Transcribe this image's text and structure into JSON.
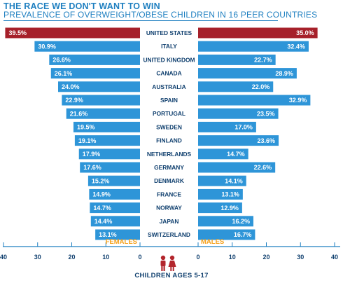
{
  "header": {
    "title": "THE RACE WE DON'T WANT TO WIN",
    "subtitle": "PREVALENCE OF OVERWEIGHT/OBESE CHILDREN IN 16 PEER COUNTRIES"
  },
  "footer": {
    "caption": "CHILDREN AGES 5-17"
  },
  "colors": {
    "default_bar": "#2e95d8",
    "highlight_bar": "#a6202a",
    "axis": "#1e7fc0",
    "label": "#0f3f6e",
    "side_label": "#f5a01a",
    "kid_icon": "#b3262d"
  },
  "chart_data": {
    "type": "bar",
    "orientation": "horizontal",
    "layout": "back-to-back",
    "categories": [
      "UNITED STATES",
      "ITALY",
      "UNITED KINGDOM",
      "CANADA",
      "AUSTRALIA",
      "SPAIN",
      "PORTUGAL",
      "SWEDEN",
      "FINLAND",
      "NETHERLANDS",
      "GERMANY",
      "DENMARK",
      "FRANCE",
      "NORWAY",
      "JAPAN",
      "SWITZERLAND"
    ],
    "series": [
      {
        "name": "FEMALES",
        "side": "left",
        "values": [
          39.5,
          30.9,
          26.6,
          26.1,
          24.0,
          22.9,
          21.6,
          19.5,
          19.1,
          17.9,
          17.6,
          15.2,
          14.9,
          14.7,
          14.4,
          13.1
        ],
        "labels": [
          "39.5%",
          "30.9%",
          "26.6%",
          "26.1%",
          "24.0%",
          "22.9%",
          "21.6%",
          "19.5%",
          "19.1%",
          "17.9%",
          "17.6%",
          "15.2%",
          "14.9%",
          "14.7%",
          "14.4%",
          "13.1%"
        ]
      },
      {
        "name": "MALES",
        "side": "right",
        "values": [
          35.0,
          32.4,
          22.7,
          28.9,
          22.0,
          32.9,
          23.5,
          17.0,
          23.6,
          14.7,
          22.6,
          14.1,
          13.1,
          12.9,
          16.2,
          16.7
        ],
        "labels": [
          "35.0%",
          "32.4%",
          "22.7%",
          "28.9%",
          "22.0%",
          "32.9%",
          "23.5%",
          "17.0%",
          "23.6%",
          "14.7%",
          "22.6%",
          "14.1%",
          "13.1%",
          "12.9%",
          "16.2%",
          "16.7%"
        ]
      }
    ],
    "highlight_category": "UNITED STATES",
    "xlim": [
      0,
      40
    ],
    "left_ticks": [
      "40",
      "30",
      "20",
      "10",
      "0"
    ],
    "right_ticks": [
      "0",
      "10",
      "20",
      "30",
      "40"
    ],
    "grid": false,
    "legend": "inline-bottom"
  }
}
